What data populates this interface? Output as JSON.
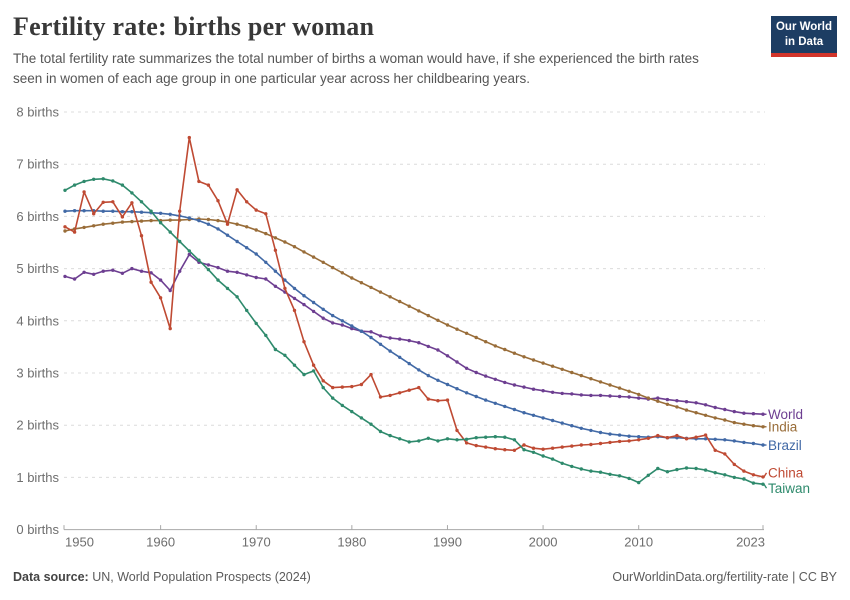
{
  "header": {
    "title": "Fertility rate: births per woman",
    "subtitle": "The total fertility rate summarizes the total number of births a woman would have, if she experienced the birth rates seen in women of each age group in one particular year across her childbearing years.",
    "logo": {
      "line1": "Our World",
      "line2": "in Data",
      "bg_color": "#1d3d63",
      "accent_color": "#d2352b"
    }
  },
  "footer": {
    "source_label": "Data source:",
    "source_text": " UN, World Population Prospects (2024)",
    "right_link": "OurWorldinData.org/fertility-rate",
    "right_license": " | CC BY"
  },
  "chart_data": {
    "type": "line",
    "title": "Fertility rate: births per woman",
    "xlabel": "",
    "ylabel": "births per woman",
    "x_range": [
      1950,
      2023
    ],
    "ylim": [
      0,
      8
    ],
    "grid": "horizontal-dashed",
    "legend_position": "right-end-labels",
    "marker": "dot",
    "y_tick_labels": [
      "0 births",
      "1 births",
      "2 births",
      "3 births",
      "4 births",
      "5 births",
      "6 births",
      "7 births",
      "8 births"
    ],
    "x_ticks": [
      1950,
      1960,
      1970,
      1980,
      1990,
      2000,
      2010,
      2023
    ],
    "x": [
      1950,
      1951,
      1952,
      1953,
      1954,
      1955,
      1956,
      1957,
      1958,
      1959,
      1960,
      1961,
      1962,
      1963,
      1964,
      1965,
      1966,
      1967,
      1968,
      1969,
      1970,
      1971,
      1972,
      1973,
      1974,
      1975,
      1976,
      1977,
      1978,
      1979,
      1980,
      1981,
      1982,
      1983,
      1984,
      1985,
      1986,
      1987,
      1988,
      1989,
      1990,
      1991,
      1992,
      1993,
      1994,
      1995,
      1996,
      1997,
      1998,
      1999,
      2000,
      2001,
      2002,
      2003,
      2004,
      2005,
      2006,
      2007,
      2008,
      2009,
      2010,
      2011,
      2012,
      2013,
      2014,
      2015,
      2016,
      2017,
      2018,
      2019,
      2020,
      2021,
      2022,
      2023
    ],
    "series": [
      {
        "name": "World",
        "color": "#6d3e91",
        "values": [
          4.85,
          4.8,
          4.93,
          4.89,
          4.95,
          4.97,
          4.91,
          5.0,
          4.95,
          4.92,
          4.78,
          4.58,
          4.95,
          5.27,
          5.12,
          5.07,
          5.02,
          4.95,
          4.93,
          4.88,
          4.83,
          4.8,
          4.66,
          4.55,
          4.43,
          4.31,
          4.18,
          4.05,
          3.96,
          3.92,
          3.85,
          3.8,
          3.79,
          3.71,
          3.67,
          3.65,
          3.62,
          3.58,
          3.51,
          3.44,
          3.33,
          3.21,
          3.09,
          3.01,
          2.94,
          2.88,
          2.82,
          2.77,
          2.73,
          2.69,
          2.66,
          2.63,
          2.61,
          2.6,
          2.58,
          2.57,
          2.57,
          2.56,
          2.55,
          2.54,
          2.52,
          2.5,
          2.52,
          2.49,
          2.47,
          2.45,
          2.43,
          2.39,
          2.34,
          2.3,
          2.26,
          2.23,
          2.22,
          2.21
        ]
      },
      {
        "name": "India",
        "color": "#996d39",
        "values": [
          5.72,
          5.76,
          5.79,
          5.82,
          5.85,
          5.87,
          5.89,
          5.9,
          5.91,
          5.92,
          5.92,
          5.93,
          5.93,
          5.94,
          5.95,
          5.94,
          5.92,
          5.89,
          5.85,
          5.8,
          5.74,
          5.67,
          5.59,
          5.51,
          5.42,
          5.32,
          5.22,
          5.12,
          5.02,
          4.92,
          4.82,
          4.73,
          4.64,
          4.55,
          4.46,
          4.37,
          4.28,
          4.19,
          4.1,
          4.01,
          3.92,
          3.84,
          3.76,
          3.68,
          3.6,
          3.52,
          3.45,
          3.38,
          3.31,
          3.25,
          3.19,
          3.13,
          3.07,
          3.01,
          2.95,
          2.89,
          2.83,
          2.77,
          2.71,
          2.65,
          2.59,
          2.52,
          2.46,
          2.4,
          2.35,
          2.29,
          2.24,
          2.19,
          2.14,
          2.1,
          2.05,
          2.02,
          1.99,
          1.97
        ]
      },
      {
        "name": "Brazil",
        "color": "#4169a6",
        "values": [
          6.1,
          6.11,
          6.11,
          6.11,
          6.1,
          6.1,
          6.09,
          6.09,
          6.08,
          6.07,
          6.06,
          6.04,
          6.01,
          5.97,
          5.92,
          5.85,
          5.76,
          5.64,
          5.52,
          5.4,
          5.28,
          5.12,
          4.95,
          4.78,
          4.62,
          4.48,
          4.35,
          4.22,
          4.1,
          4.0,
          3.9,
          3.8,
          3.68,
          3.55,
          3.42,
          3.3,
          3.18,
          3.06,
          2.95,
          2.86,
          2.78,
          2.7,
          2.62,
          2.55,
          2.48,
          2.42,
          2.36,
          2.3,
          2.24,
          2.19,
          2.14,
          2.09,
          2.04,
          1.99,
          1.94,
          1.9,
          1.86,
          1.83,
          1.81,
          1.79,
          1.78,
          1.77,
          1.78,
          1.76,
          1.76,
          1.75,
          1.74,
          1.74,
          1.73,
          1.72,
          1.7,
          1.67,
          1.65,
          1.62
        ]
      },
      {
        "name": "China",
        "color": "#bf4a33",
        "values": [
          5.8,
          5.7,
          6.47,
          6.05,
          6.27,
          6.28,
          5.99,
          6.26,
          5.63,
          4.74,
          4.44,
          3.85,
          6.1,
          7.51,
          6.67,
          6.6,
          6.3,
          5.85,
          6.51,
          6.28,
          6.12,
          6.05,
          5.35,
          4.62,
          4.2,
          3.6,
          3.15,
          2.85,
          2.72,
          2.73,
          2.74,
          2.78,
          2.97,
          2.54,
          2.57,
          2.62,
          2.67,
          2.72,
          2.5,
          2.47,
          2.48,
          1.9,
          1.66,
          1.61,
          1.58,
          1.55,
          1.53,
          1.52,
          1.62,
          1.56,
          1.54,
          1.56,
          1.58,
          1.6,
          1.62,
          1.63,
          1.65,
          1.67,
          1.69,
          1.7,
          1.72,
          1.75,
          1.8,
          1.76,
          1.8,
          1.74,
          1.77,
          1.81,
          1.52,
          1.45,
          1.25,
          1.12,
          1.05,
          1.01
        ]
      },
      {
        "name": "Taiwan",
        "color": "#2e8a6c",
        "values": [
          6.5,
          6.6,
          6.67,
          6.71,
          6.72,
          6.68,
          6.6,
          6.45,
          6.28,
          6.1,
          5.88,
          5.7,
          5.52,
          5.34,
          5.16,
          4.98,
          4.78,
          4.62,
          4.46,
          4.2,
          3.95,
          3.72,
          3.45,
          3.34,
          3.15,
          2.97,
          3.04,
          2.72,
          2.52,
          2.38,
          2.26,
          2.14,
          2.02,
          1.88,
          1.8,
          1.74,
          1.68,
          1.7,
          1.75,
          1.7,
          1.74,
          1.72,
          1.73,
          1.76,
          1.77,
          1.78,
          1.77,
          1.72,
          1.53,
          1.48,
          1.41,
          1.35,
          1.27,
          1.21,
          1.16,
          1.12,
          1.1,
          1.06,
          1.03,
          0.98,
          0.9,
          1.04,
          1.17,
          1.11,
          1.15,
          1.18,
          1.17,
          1.14,
          1.09,
          1.05,
          1.0,
          0.97,
          0.89,
          0.87
        ]
      }
    ]
  }
}
